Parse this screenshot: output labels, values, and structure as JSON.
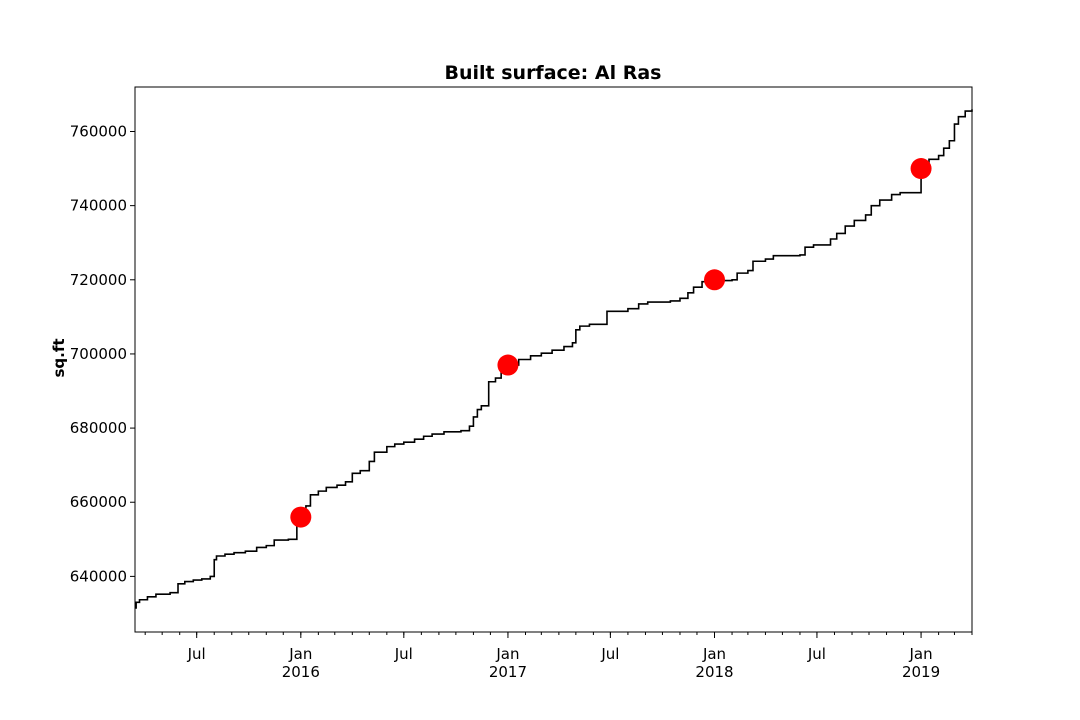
{
  "chart_data": {
    "type": "line",
    "title": "Built surface: Al Ras",
    "xlabel": "",
    "ylabel": "sq.ft",
    "xlim": [
      "2015-03-14",
      "2019-04-01"
    ],
    "ylim": [
      625000,
      772000
    ],
    "yticks": [
      640000,
      660000,
      680000,
      700000,
      720000,
      740000,
      760000
    ],
    "xticks_major": [
      {
        "date": "2015-07-01",
        "label": "Jul",
        "sub": ""
      },
      {
        "date": "2016-01-01",
        "label": "Jan",
        "sub": "2016"
      },
      {
        "date": "2016-07-01",
        "label": "Jul",
        "sub": ""
      },
      {
        "date": "2017-01-01",
        "label": "Jan",
        "sub": "2017"
      },
      {
        "date": "2017-07-01",
        "label": "Jul",
        "sub": ""
      },
      {
        "date": "2018-01-01",
        "label": "Jan",
        "sub": "2018"
      },
      {
        "date": "2018-07-01",
        "label": "Jul",
        "sub": ""
      },
      {
        "date": "2019-01-01",
        "label": "Jan",
        "sub": "2019"
      }
    ],
    "grid": false,
    "series": [
      {
        "line_color": "#000000",
        "step": true,
        "points": [
          [
            "2015-03-14",
            631500
          ],
          [
            "2015-03-16",
            633000
          ],
          [
            "2015-03-22",
            633700
          ],
          [
            "2015-04-05",
            634500
          ],
          [
            "2015-04-20",
            635200
          ],
          [
            "2015-05-15",
            635600
          ],
          [
            "2015-05-29",
            638000
          ],
          [
            "2015-06-10",
            638600
          ],
          [
            "2015-06-25",
            639000
          ],
          [
            "2015-07-10",
            639300
          ],
          [
            "2015-07-25",
            640000
          ],
          [
            "2015-08-01",
            644500
          ],
          [
            "2015-08-05",
            645500
          ],
          [
            "2015-08-20",
            646000
          ],
          [
            "2015-09-05",
            646400
          ],
          [
            "2015-09-25",
            646800
          ],
          [
            "2015-10-15",
            647800
          ],
          [
            "2015-11-01",
            648300
          ],
          [
            "2015-11-15",
            649800
          ],
          [
            "2015-12-10",
            650000
          ],
          [
            "2015-12-25",
            654000
          ],
          [
            "2016-01-01",
            655600
          ],
          [
            "2016-01-10",
            659000
          ],
          [
            "2016-01-18",
            662000
          ],
          [
            "2016-02-01",
            663000
          ],
          [
            "2016-02-15",
            664000
          ],
          [
            "2016-03-05",
            664600
          ],
          [
            "2016-03-20",
            665500
          ],
          [
            "2016-04-01",
            667800
          ],
          [
            "2016-04-15",
            668500
          ],
          [
            "2016-05-01",
            671000
          ],
          [
            "2016-05-10",
            673500
          ],
          [
            "2016-06-01",
            675000
          ],
          [
            "2016-06-15",
            675700
          ],
          [
            "2016-07-01",
            676200
          ],
          [
            "2016-07-20",
            677000
          ],
          [
            "2016-08-05",
            677800
          ],
          [
            "2016-08-20",
            678400
          ],
          [
            "2016-09-10",
            679000
          ],
          [
            "2016-10-10",
            679300
          ],
          [
            "2016-10-25",
            680500
          ],
          [
            "2016-11-01",
            683000
          ],
          [
            "2016-11-08",
            685000
          ],
          [
            "2016-11-15",
            686000
          ],
          [
            "2016-11-28",
            692500
          ],
          [
            "2016-12-10",
            693500
          ],
          [
            "2016-12-20",
            695000
          ],
          [
            "2017-01-01",
            697000
          ],
          [
            "2017-01-20",
            698500
          ],
          [
            "2017-02-10",
            699500
          ],
          [
            "2017-03-01",
            700200
          ],
          [
            "2017-03-20",
            701000
          ],
          [
            "2017-04-10",
            702000
          ],
          [
            "2017-04-25",
            703000
          ],
          [
            "2017-05-01",
            706500
          ],
          [
            "2017-05-08",
            707500
          ],
          [
            "2017-05-25",
            708000
          ],
          [
            "2017-06-25",
            711500
          ],
          [
            "2017-08-01",
            712200
          ],
          [
            "2017-08-20",
            713500
          ],
          [
            "2017-09-05",
            714000
          ],
          [
            "2017-10-15",
            714300
          ],
          [
            "2017-11-01",
            715000
          ],
          [
            "2017-11-15",
            716500
          ],
          [
            "2017-11-25",
            718000
          ],
          [
            "2017-12-10",
            719500
          ],
          [
            "2018-01-01",
            719800
          ],
          [
            "2018-02-01",
            720000
          ],
          [
            "2018-02-10",
            721800
          ],
          [
            "2018-03-01",
            722500
          ],
          [
            "2018-03-10",
            725000
          ],
          [
            "2018-04-01",
            725600
          ],
          [
            "2018-04-15",
            726500
          ],
          [
            "2018-06-01",
            726700
          ],
          [
            "2018-06-10",
            728800
          ],
          [
            "2018-06-25",
            729400
          ],
          [
            "2018-07-25",
            731000
          ],
          [
            "2018-08-05",
            732500
          ],
          [
            "2018-08-20",
            734500
          ],
          [
            "2018-09-05",
            736000
          ],
          [
            "2018-09-25",
            737500
          ],
          [
            "2018-10-05",
            740000
          ],
          [
            "2018-10-20",
            741500
          ],
          [
            "2018-11-10",
            743000
          ],
          [
            "2018-11-25",
            743500
          ],
          [
            "2018-12-28",
            743500
          ],
          [
            "2019-01-01",
            750000
          ],
          [
            "2019-01-15",
            752500
          ],
          [
            "2019-02-01",
            753500
          ],
          [
            "2019-02-10",
            755500
          ],
          [
            "2019-02-20",
            757500
          ],
          [
            "2019-03-01",
            762000
          ],
          [
            "2019-03-08",
            764000
          ],
          [
            "2019-03-20",
            765500
          ],
          [
            "2019-04-01",
            766000
          ]
        ]
      }
    ],
    "highlights": {
      "color": "#ff0000",
      "points": [
        {
          "date": "2016-01-01",
          "value": 656000
        },
        {
          "date": "2017-01-01",
          "value": 697000
        },
        {
          "date": "2018-01-01",
          "value": 720000
        },
        {
          "date": "2019-01-01",
          "value": 750000
        }
      ]
    }
  }
}
